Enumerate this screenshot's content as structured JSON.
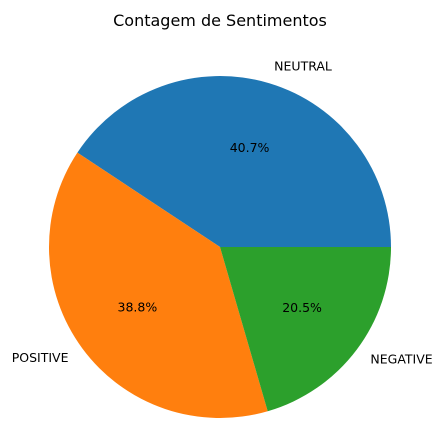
{
  "chart_data": {
    "type": "pie",
    "title": "Contagem de Sentimentos",
    "slices": [
      {
        "label": "NEUTRAL",
        "value": 40.7,
        "pct_label": "40.7%",
        "color": "#1f77b4"
      },
      {
        "label": "POSITIVE",
        "value": 38.8,
        "pct_label": "38.8%",
        "color": "#ff7f0e"
      },
      {
        "label": "NEGATIVE",
        "value": 20.5,
        "pct_label": "20.5%",
        "color": "#2ca02c"
      }
    ],
    "start_angle_deg": 0,
    "direction": "counterclockwise"
  }
}
